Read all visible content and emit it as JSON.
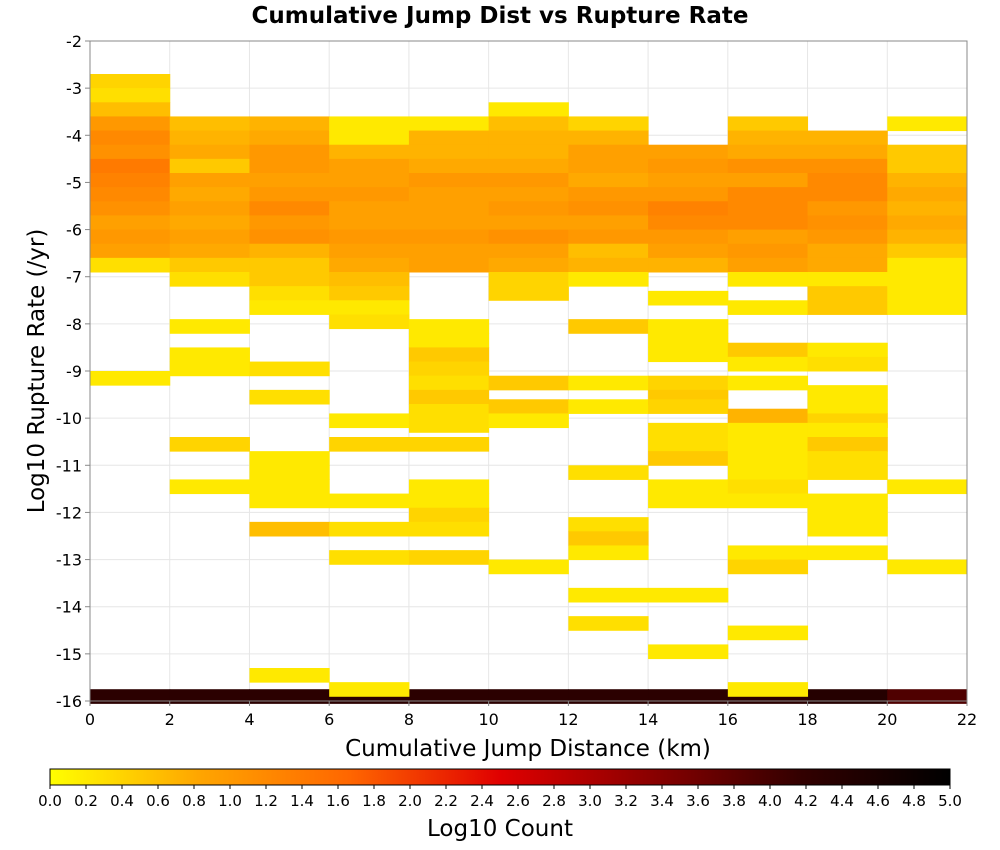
{
  "chart_data": {
    "type": "heatmap",
    "title": "Cumulative Jump Dist vs Rupture Rate",
    "xlabel": "Cumulative Jump Distance (km)",
    "ylabel": "Log10 Rupture Rate (/yr)",
    "colorbar_label": "Log10 Count",
    "xlim": [
      0,
      22
    ],
    "ylim": [
      -16,
      -2
    ],
    "x_bin_width": 2,
    "y_bin_width": 0.3,
    "x_ticks": [
      0,
      2,
      4,
      6,
      8,
      10,
      12,
      14,
      16,
      18,
      20,
      22
    ],
    "y_ticks": [
      -16,
      -15,
      -14,
      -13,
      -12,
      -11,
      -10,
      -9,
      -8,
      -7,
      -6,
      -5,
      -4,
      -3,
      -2
    ],
    "colorbar_range": [
      0.0,
      5.0
    ],
    "colorbar_ticks": [
      "0.0",
      "0.2",
      "0.4",
      "0.6",
      "0.8",
      "1.0",
      "1.2",
      "1.4",
      "1.6",
      "1.8",
      "2.0",
      "2.2",
      "2.4",
      "2.6",
      "2.8",
      "3.0",
      "3.2",
      "3.4",
      "3.6",
      "3.8",
      "4.0",
      "4.2",
      "4.4",
      "4.6",
      "4.8",
      "5.0"
    ],
    "colormap": [
      "#ffff00",
      "#ffa500",
      "#ff6600",
      "#e00000",
      "#8b0000",
      "#330000",
      "#000000"
    ],
    "grid": true,
    "cells": [
      [
        0,
        -15.9,
        4.3
      ],
      [
        2,
        -15.9,
        4.3
      ],
      [
        4,
        -15.9,
        4.3
      ],
      [
        6,
        -15.9,
        4.3
      ],
      [
        8,
        -15.9,
        4.3
      ],
      [
        10,
        -15.9,
        4.3
      ],
      [
        12,
        -15.9,
        4.3
      ],
      [
        14,
        -15.9,
        4.3
      ],
      [
        16,
        -15.9,
        4.3
      ],
      [
        18,
        -15.9,
        4.4
      ],
      [
        20,
        -15.9,
        3.9
      ],
      [
        0,
        -2.85,
        0.4
      ],
      [
        0,
        -3.15,
        0.3
      ],
      [
        0,
        -3.45,
        0.6
      ],
      [
        0,
        -3.75,
        1.0
      ],
      [
        0,
        -4.05,
        1.2
      ],
      [
        0,
        -4.35,
        1.1
      ],
      [
        0,
        -4.65,
        1.4
      ],
      [
        0,
        -4.95,
        1.3
      ],
      [
        0,
        -5.25,
        1.2
      ],
      [
        0,
        -5.55,
        1.1
      ],
      [
        0,
        -5.85,
        0.9
      ],
      [
        0,
        -6.15,
        1.0
      ],
      [
        0,
        -6.45,
        0.9
      ],
      [
        0,
        -6.75,
        0.3
      ],
      [
        0,
        -9.15,
        0.2
      ],
      [
        2,
        -3.75,
        0.6
      ],
      [
        2,
        -4.05,
        0.7
      ],
      [
        2,
        -4.35,
        0.8
      ],
      [
        2,
        -4.65,
        0.5
      ],
      [
        2,
        -4.95,
        0.9
      ],
      [
        2,
        -5.25,
        0.8
      ],
      [
        2,
        -5.55,
        0.9
      ],
      [
        2,
        -5.85,
        0.8
      ],
      [
        2,
        -6.15,
        0.9
      ],
      [
        2,
        -6.45,
        0.8
      ],
      [
        2,
        -6.75,
        0.5
      ],
      [
        2,
        -7.05,
        0.3
      ],
      [
        2,
        -8.05,
        0.2
      ],
      [
        2,
        -8.65,
        0.2
      ],
      [
        2,
        -8.95,
        0.2
      ],
      [
        2,
        -10.55,
        0.4
      ],
      [
        2,
        -11.45,
        0.2
      ],
      [
        4,
        -3.75,
        0.7
      ],
      [
        4,
        -4.05,
        0.8
      ],
      [
        4,
        -4.35,
        1.0
      ],
      [
        4,
        -4.65,
        1.0
      ],
      [
        4,
        -4.95,
        0.9
      ],
      [
        4,
        -5.25,
        1.0
      ],
      [
        4,
        -5.55,
        1.2
      ],
      [
        4,
        -5.85,
        1.0
      ],
      [
        4,
        -6.15,
        1.1
      ],
      [
        4,
        -6.45,
        0.7
      ],
      [
        4,
        -6.75,
        0.5
      ],
      [
        4,
        -7.05,
        0.5
      ],
      [
        4,
        -7.35,
        0.3
      ],
      [
        4,
        -7.65,
        0.2
      ],
      [
        4,
        -8.95,
        0.3
      ],
      [
        4,
        -9.55,
        0.3
      ],
      [
        4,
        -10.85,
        0.2
      ],
      [
        4,
        -11.15,
        0.2
      ],
      [
        4,
        -11.45,
        0.2
      ],
      [
        4,
        -11.75,
        0.2
      ],
      [
        4,
        -12.35,
        0.6
      ],
      [
        4,
        -15.45,
        0.2
      ],
      [
        6,
        -3.75,
        0.2
      ],
      [
        6,
        -4.05,
        0.2
      ],
      [
        6,
        -4.35,
        0.7
      ],
      [
        6,
        -4.65,
        0.9
      ],
      [
        6,
        -4.95,
        0.9
      ],
      [
        6,
        -5.25,
        1.0
      ],
      [
        6,
        -5.55,
        0.9
      ],
      [
        6,
        -5.85,
        0.9
      ],
      [
        6,
        -6.15,
        1.0
      ],
      [
        6,
        -6.45,
        0.9
      ],
      [
        6,
        -6.75,
        0.8
      ],
      [
        6,
        -7.05,
        0.6
      ],
      [
        6,
        -7.35,
        0.5
      ],
      [
        6,
        -7.65,
        0.2
      ],
      [
        6,
        -7.95,
        0.3
      ],
      [
        6,
        -10.05,
        0.2
      ],
      [
        6,
        -10.55,
        0.4
      ],
      [
        6,
        -11.75,
        0.2
      ],
      [
        6,
        -12.35,
        0.3
      ],
      [
        6,
        -12.95,
        0.3
      ],
      [
        6,
        -15.75,
        0.2
      ],
      [
        8,
        -3.75,
        0.2
      ],
      [
        8,
        -4.05,
        0.7
      ],
      [
        8,
        -4.35,
        0.7
      ],
      [
        8,
        -4.65,
        0.8
      ],
      [
        8,
        -4.95,
        1.0
      ],
      [
        8,
        -5.25,
        0.9
      ],
      [
        8,
        -5.55,
        0.9
      ],
      [
        8,
        -5.85,
        0.9
      ],
      [
        8,
        -6.15,
        1.0
      ],
      [
        8,
        -6.45,
        0.9
      ],
      [
        8,
        -6.75,
        0.9
      ],
      [
        8,
        -8.05,
        0.2
      ],
      [
        8,
        -8.35,
        0.2
      ],
      [
        8,
        -8.65,
        0.5
      ],
      [
        8,
        -8.95,
        0.4
      ],
      [
        8,
        -9.25,
        0.3
      ],
      [
        8,
        -9.55,
        0.5
      ],
      [
        8,
        -9.85,
        0.3
      ],
      [
        8,
        -10.15,
        0.3
      ],
      [
        8,
        -10.55,
        0.4
      ],
      [
        8,
        -11.45,
        0.2
      ],
      [
        8,
        -11.75,
        0.2
      ],
      [
        8,
        -12.05,
        0.4
      ],
      [
        8,
        -12.35,
        0.3
      ],
      [
        8,
        -12.95,
        0.4
      ],
      [
        10,
        -3.45,
        0.2
      ],
      [
        10,
        -3.75,
        0.6
      ],
      [
        10,
        -4.05,
        0.7
      ],
      [
        10,
        -4.35,
        0.7
      ],
      [
        10,
        -4.65,
        0.8
      ],
      [
        10,
        -4.95,
        1.0
      ],
      [
        10,
        -5.25,
        0.9
      ],
      [
        10,
        -5.55,
        1.0
      ],
      [
        10,
        -5.85,
        0.9
      ],
      [
        10,
        -6.15,
        1.1
      ],
      [
        10,
        -6.45,
        0.9
      ],
      [
        10,
        -6.75,
        0.8
      ],
      [
        10,
        -7.05,
        0.4
      ],
      [
        10,
        -7.35,
        0.4
      ],
      [
        10,
        -9.25,
        0.5
      ],
      [
        10,
        -9.75,
        0.5
      ],
      [
        10,
        -10.05,
        0.2
      ],
      [
        10,
        -13.15,
        0.2
      ],
      [
        12,
        -3.75,
        0.4
      ],
      [
        12,
        -4.05,
        0.7
      ],
      [
        12,
        -4.35,
        0.9
      ],
      [
        12,
        -4.65,
        0.9
      ],
      [
        12,
        -4.95,
        0.8
      ],
      [
        12,
        -5.25,
        1.0
      ],
      [
        12,
        -5.55,
        1.1
      ],
      [
        12,
        -5.85,
        0.9
      ],
      [
        12,
        -6.15,
        1.0
      ],
      [
        12,
        -6.45,
        0.6
      ],
      [
        12,
        -6.75,
        0.7
      ],
      [
        12,
        -7.05,
        0.2
      ],
      [
        12,
        -8.05,
        0.5
      ],
      [
        12,
        -9.25,
        0.2
      ],
      [
        12,
        -9.75,
        0.2
      ],
      [
        12,
        -11.15,
        0.3
      ],
      [
        12,
        -12.25,
        0.3
      ],
      [
        12,
        -12.55,
        0.5
      ],
      [
        12,
        -12.85,
        0.2
      ],
      [
        12,
        -13.75,
        0.2
      ],
      [
        12,
        -14.35,
        0.3
      ],
      [
        14,
        -4.35,
        0.9
      ],
      [
        14,
        -4.65,
        1.0
      ],
      [
        14,
        -4.95,
        0.9
      ],
      [
        14,
        -5.25,
        1.0
      ],
      [
        14,
        -5.55,
        1.3
      ],
      [
        14,
        -5.85,
        1.2
      ],
      [
        14,
        -6.15,
        1.0
      ],
      [
        14,
        -6.45,
        0.9
      ],
      [
        14,
        -6.75,
        0.7
      ],
      [
        14,
        -7.45,
        0.2
      ],
      [
        14,
        -8.05,
        0.2
      ],
      [
        14,
        -8.35,
        0.2
      ],
      [
        14,
        -8.65,
        0.2
      ],
      [
        14,
        -9.25,
        0.4
      ],
      [
        14,
        -9.55,
        0.5
      ],
      [
        14,
        -9.75,
        0.4
      ],
      [
        14,
        -10.25,
        0.3
      ],
      [
        14,
        -10.55,
        0.3
      ],
      [
        14,
        -10.85,
        0.5
      ],
      [
        14,
        -11.45,
        0.2
      ],
      [
        14,
        -11.75,
        0.2
      ],
      [
        14,
        -13.75,
        0.2
      ],
      [
        14,
        -14.95,
        0.2
      ],
      [
        16,
        -3.75,
        0.5
      ],
      [
        16,
        -4.05,
        0.7
      ],
      [
        16,
        -4.35,
        0.8
      ],
      [
        16,
        -4.65,
        1.1
      ],
      [
        16,
        -4.95,
        0.9
      ],
      [
        16,
        -5.25,
        1.2
      ],
      [
        16,
        -5.55,
        1.2
      ],
      [
        16,
        -5.85,
        1.2
      ],
      [
        16,
        -6.15,
        0.9
      ],
      [
        16,
        -6.45,
        1.0
      ],
      [
        16,
        -6.75,
        0.9
      ],
      [
        16,
        -7.05,
        0.2
      ],
      [
        16,
        -7.65,
        0.2
      ],
      [
        16,
        -8.55,
        0.5
      ],
      [
        16,
        -8.85,
        0.2
      ],
      [
        16,
        -9.25,
        0.2
      ],
      [
        16,
        -9.95,
        0.7
      ],
      [
        16,
        -10.25,
        0.2
      ],
      [
        16,
        -10.55,
        0.2
      ],
      [
        16,
        -10.85,
        0.2
      ],
      [
        16,
        -11.15,
        0.2
      ],
      [
        16,
        -11.45,
        0.3
      ],
      [
        16,
        -11.75,
        0.2
      ],
      [
        16,
        -12.85,
        0.2
      ],
      [
        16,
        -13.15,
        0.4
      ],
      [
        16,
        -14.55,
        0.2
      ],
      [
        16,
        -15.75,
        0.2
      ],
      [
        18,
        -4.05,
        0.7
      ],
      [
        18,
        -4.35,
        0.8
      ],
      [
        18,
        -4.65,
        1.1
      ],
      [
        18,
        -4.95,
        1.2
      ],
      [
        18,
        -5.25,
        1.2
      ],
      [
        18,
        -5.55,
        1.0
      ],
      [
        18,
        -5.85,
        1.1
      ],
      [
        18,
        -6.15,
        1.0
      ],
      [
        18,
        -6.45,
        0.8
      ],
      [
        18,
        -6.75,
        0.8
      ],
      [
        18,
        -7.05,
        0.2
      ],
      [
        18,
        -7.35,
        0.5
      ],
      [
        18,
        -7.65,
        0.5
      ],
      [
        18,
        -8.55,
        0.2
      ],
      [
        18,
        -8.85,
        0.3
      ],
      [
        18,
        -9.45,
        0.2
      ],
      [
        18,
        -9.75,
        0.2
      ],
      [
        18,
        -10.05,
        0.4
      ],
      [
        18,
        -10.25,
        0.2
      ],
      [
        18,
        -10.55,
        0.5
      ],
      [
        18,
        -10.85,
        0.3
      ],
      [
        18,
        -11.15,
        0.3
      ],
      [
        18,
        -11.75,
        0.2
      ],
      [
        18,
        -12.05,
        0.2
      ],
      [
        18,
        -12.35,
        0.2
      ],
      [
        18,
        -12.85,
        0.2
      ],
      [
        20,
        -3.75,
        0.2
      ],
      [
        20,
        -4.35,
        0.5
      ],
      [
        20,
        -4.65,
        0.5
      ],
      [
        20,
        -4.95,
        0.7
      ],
      [
        20,
        -5.25,
        0.8
      ],
      [
        20,
        -5.55,
        0.7
      ],
      [
        20,
        -5.85,
        0.8
      ],
      [
        20,
        -6.15,
        0.7
      ],
      [
        20,
        -6.45,
        0.5
      ],
      [
        20,
        -6.75,
        0.2
      ],
      [
        20,
        -7.05,
        0.2
      ],
      [
        20,
        -7.35,
        0.2
      ],
      [
        20,
        -7.65,
        0.2
      ],
      [
        20,
        -11.45,
        0.2
      ],
      [
        20,
        -13.15,
        0.2
      ]
    ]
  }
}
